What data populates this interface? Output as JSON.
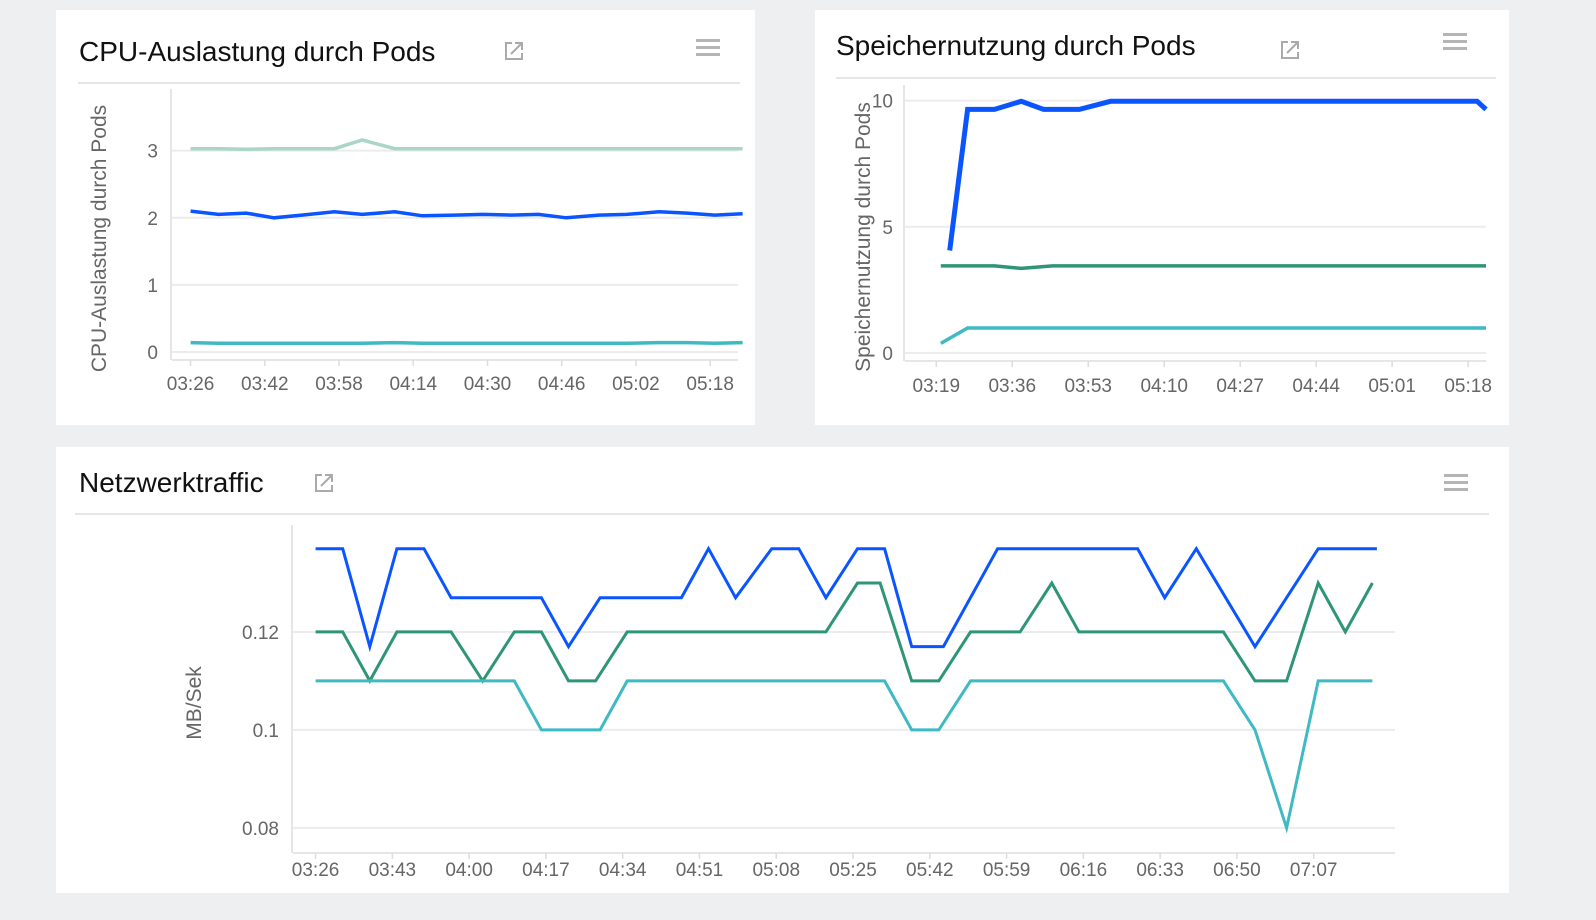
{
  "colors": {
    "background": "#eeeff1",
    "blue": "#0a55ff",
    "green": "#2e9576",
    "cyan": "#3fbac4",
    "light_green": "#a9d6c6",
    "grid": "#ececec"
  },
  "icons": {
    "expand": "external-link-icon",
    "menu": "hamburger-menu-icon"
  },
  "panels": {
    "cpu": {
      "title": "CPU-Auslastung durch Pods",
      "chart_data": {
        "type": "line",
        "ylabel": "CPU-Auslastung durch Pods",
        "xlabel": "",
        "xlim": [
          "03:22",
          "05:24"
        ],
        "ylim": [
          0,
          3.8
        ],
        "yticks": [
          "0",
          "1",
          "2",
          "3"
        ],
        "xticks": [
          "03:26",
          "03:42",
          "03:58",
          "04:14",
          "04:30",
          "04:46",
          "05:02",
          "05:18"
        ],
        "grid": true,
        "series": [
          {
            "color": "#a9d6c6",
            "points": [
              [
                "03:26",
                3.03
              ],
              [
                "03:32",
                3.03
              ],
              [
                "03:38",
                3.02
              ],
              [
                "03:44",
                3.03
              ],
              [
                "03:50",
                3.03
              ],
              [
                "03:57",
                3.03
              ],
              [
                "04:03",
                3.16
              ],
              [
                "04:10",
                3.03
              ],
              [
                "04:16",
                3.03
              ],
              [
                "04:23",
                3.03
              ],
              [
                "04:29",
                3.03
              ],
              [
                "04:35",
                3.03
              ],
              [
                "04:41",
                3.03
              ],
              [
                "04:47",
                3.03
              ],
              [
                "04:54",
                3.03
              ],
              [
                "05:00",
                3.03
              ],
              [
                "05:07",
                3.03
              ],
              [
                "05:13",
                3.03
              ],
              [
                "05:19",
                3.03
              ],
              [
                "05:25",
                3.03
              ]
            ]
          },
          {
            "color": "#0a55ff",
            "points": [
              [
                "03:26",
                2.1
              ],
              [
                "03:32",
                2.05
              ],
              [
                "03:38",
                2.07
              ],
              [
                "03:44",
                2.0
              ],
              [
                "03:50",
                2.04
              ],
              [
                "03:57",
                2.09
              ],
              [
                "04:03",
                2.05
              ],
              [
                "04:10",
                2.09
              ],
              [
                "04:16",
                2.03
              ],
              [
                "04:23",
                2.04
              ],
              [
                "04:29",
                2.05
              ],
              [
                "04:35",
                2.04
              ],
              [
                "04:41",
                2.05
              ],
              [
                "04:47",
                2.0
              ],
              [
                "04:54",
                2.04
              ],
              [
                "05:00",
                2.05
              ],
              [
                "05:07",
                2.09
              ],
              [
                "05:13",
                2.07
              ],
              [
                "05:19",
                2.04
              ],
              [
                "05:25",
                2.06
              ]
            ]
          },
          {
            "color": "#3fbac4",
            "points": [
              [
                "03:26",
                0.14
              ],
              [
                "03:32",
                0.13
              ],
              [
                "03:38",
                0.13
              ],
              [
                "03:44",
                0.13
              ],
              [
                "03:50",
                0.13
              ],
              [
                "03:57",
                0.13
              ],
              [
                "04:03",
                0.13
              ],
              [
                "04:10",
                0.14
              ],
              [
                "04:16",
                0.13
              ],
              [
                "04:23",
                0.13
              ],
              [
                "04:29",
                0.13
              ],
              [
                "04:35",
                0.13
              ],
              [
                "04:41",
                0.13
              ],
              [
                "04:47",
                0.13
              ],
              [
                "04:54",
                0.13
              ],
              [
                "05:00",
                0.13
              ],
              [
                "05:07",
                0.14
              ],
              [
                "05:13",
                0.14
              ],
              [
                "05:19",
                0.13
              ],
              [
                "05:25",
                0.14
              ]
            ]
          }
        ]
      }
    },
    "memory": {
      "title": "Speichernutzung durch Pods",
      "chart_data": {
        "type": "line",
        "ylabel": "Speichernutzung durch Pods",
        "xlabel": "",
        "xlim": [
          "03:12",
          "05:22"
        ],
        "ylim": [
          0,
          10.3
        ],
        "yticks": [
          "0",
          "5",
          "10"
        ],
        "xticks": [
          "03:19",
          "03:36",
          "03:53",
          "04:10",
          "04:27",
          "04:44",
          "05:01",
          "05:18"
        ],
        "grid": true,
        "series": [
          {
            "color": "#0a55ff",
            "points": [
              [
                "03:22",
                4.06
              ],
              [
                "03:26",
                9.65
              ],
              [
                "03:32",
                9.65
              ],
              [
                "03:38",
                9.97
              ],
              [
                "03:43",
                9.65
              ],
              [
                "03:51",
                9.65
              ],
              [
                "03:58",
                9.97
              ],
              [
                "05:20",
                9.97
              ],
              [
                "05:22",
                9.65
              ]
            ]
          },
          {
            "color": "#2e9576",
            "points": [
              [
                "03:20",
                3.45
              ],
              [
                "03:32",
                3.45
              ],
              [
                "03:38",
                3.35
              ],
              [
                "03:45",
                3.45
              ],
              [
                "05:22",
                3.45
              ]
            ]
          },
          {
            "color": "#3fbac4",
            "points": [
              [
                "03:20",
                0.38
              ],
              [
                "03:26",
                0.99
              ],
              [
                "05:22",
                0.99
              ]
            ]
          }
        ]
      }
    },
    "network": {
      "title": "Netzwerktraffic",
      "chart_data": {
        "type": "line",
        "ylabel": "MB/Sek",
        "xlabel": "",
        "xlim": [
          "03:21",
          "07:25"
        ],
        "ylim": [
          0.0765,
          0.1402
        ],
        "yticks": [
          "0.08",
          "0.1",
          "0.12"
        ],
        "xticks": [
          "03:26",
          "03:43",
          "04:00",
          "04:17",
          "04:34",
          "04:51",
          "05:08",
          "05:25",
          "05:42",
          "05:59",
          "06:16",
          "06:33",
          "06:50",
          "07:07"
        ],
        "grid": true,
        "series": [
          {
            "color": "#0a55ff",
            "points": [
              [
                "03:26",
                0.137
              ],
              [
                "03:32",
                0.137
              ],
              [
                "03:38",
                0.117
              ],
              [
                "03:44",
                0.137
              ],
              [
                "03:50",
                0.137
              ],
              [
                "03:56",
                0.127
              ],
              [
                "04:16",
                0.127
              ],
              [
                "04:22",
                0.117
              ],
              [
                "04:29",
                0.127
              ],
              [
                "04:47",
                0.127
              ],
              [
                "04:53",
                0.137
              ],
              [
                "04:59",
                0.127
              ],
              [
                "05:07",
                0.137
              ],
              [
                "05:13",
                0.137
              ],
              [
                "05:19",
                0.127
              ],
              [
                "05:26",
                0.137
              ],
              [
                "05:32",
                0.137
              ],
              [
                "05:38",
                0.117
              ],
              [
                "05:45",
                0.117
              ],
              [
                "05:57",
                0.137
              ],
              [
                "06:28",
                0.137
              ],
              [
                "06:34",
                0.127
              ],
              [
                "06:41",
                0.137
              ],
              [
                "06:54",
                0.117
              ],
              [
                "07:08",
                0.137
              ],
              [
                "07:21",
                0.137
              ]
            ]
          },
          {
            "color": "#2e9576",
            "points": [
              [
                "03:26",
                0.12
              ],
              [
                "03:32",
                0.12
              ],
              [
                "03:38",
                0.11
              ],
              [
                "03:44",
                0.12
              ],
              [
                "03:56",
                0.12
              ],
              [
                "04:03",
                0.11
              ],
              [
                "04:10",
                0.12
              ],
              [
                "04:16",
                0.12
              ],
              [
                "04:22",
                0.11
              ],
              [
                "04:28",
                0.11
              ],
              [
                "04:35",
                0.12
              ],
              [
                "05:19",
                0.12
              ],
              [
                "05:26",
                0.13
              ],
              [
                "05:31",
                0.13
              ],
              [
                "05:38",
                0.11
              ],
              [
                "05:44",
                0.11
              ],
              [
                "05:51",
                0.12
              ],
              [
                "06:02",
                0.12
              ],
              [
                "06:09",
                0.13
              ],
              [
                "06:15",
                0.12
              ],
              [
                "06:47",
                0.12
              ],
              [
                "06:54",
                0.11
              ],
              [
                "07:01",
                0.11
              ],
              [
                "07:08",
                0.13
              ],
              [
                "07:14",
                0.12
              ],
              [
                "07:20",
                0.13
              ]
            ]
          },
          {
            "color": "#3fbac4",
            "points": [
              [
                "03:26",
                0.11
              ],
              [
                "04:10",
                0.11
              ],
              [
                "04:16",
                0.1
              ],
              [
                "04:29",
                0.1
              ],
              [
                "04:35",
                0.11
              ],
              [
                "05:32",
                0.11
              ],
              [
                "05:38",
                0.1
              ],
              [
                "05:44",
                0.1
              ],
              [
                "05:51",
                0.11
              ],
              [
                "06:47",
                0.11
              ],
              [
                "06:54",
                0.1
              ],
              [
                "07:01",
                0.08
              ],
              [
                "07:08",
                0.11
              ],
              [
                "07:20",
                0.11
              ]
            ]
          }
        ]
      }
    }
  }
}
